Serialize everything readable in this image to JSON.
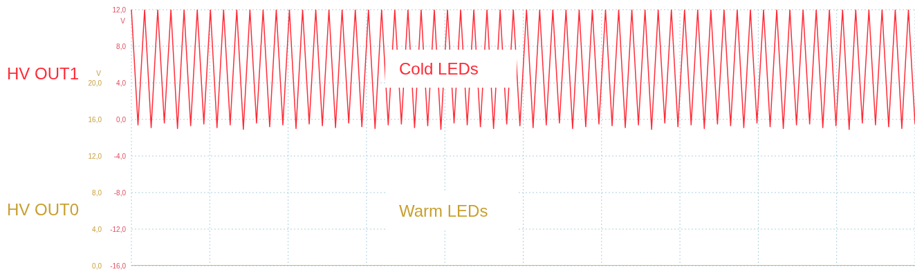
{
  "chart_data": {
    "type": "line",
    "categories": [
      null,
      null,
      null,
      null,
      null,
      null,
      null,
      null,
      null,
      null,
      null,
      null,
      null,
      null,
      null,
      null,
      null,
      null,
      null,
      null,
      null,
      null,
      null,
      null,
      null,
      null,
      null,
      null,
      null,
      null,
      null,
      null,
      null,
      null,
      null,
      null,
      null,
      null,
      null,
      null,
      null,
      null,
      null,
      null,
      null,
      null,
      null,
      null,
      null,
      null,
      null,
      null,
      null,
      null,
      null,
      null,
      null,
      null,
      null,
      null,
      null,
      null,
      null,
      null,
      null,
      null,
      null,
      null,
      null,
      null,
      null,
      null,
      null,
      null,
      null,
      null,
      null,
      null,
      null,
      null,
      null,
      null,
      null,
      null,
      null,
      null,
      null,
      null,
      null,
      null,
      null,
      null,
      null,
      null,
      null,
      null,
      null,
      null,
      null,
      null,
      null,
      null,
      null,
      null,
      null,
      null,
      null,
      null,
      null,
      null,
      null,
      null,
      null,
      null,
      null,
      null,
      null,
      null,
      null,
      null
    ],
    "series": [
      {
        "name": "HV OUT1",
        "color": "#ff2a36",
        "values": [
          12,
          -0.6,
          12,
          -0.9,
          12,
          -0.4,
          12,
          -1.0,
          12,
          -0.7,
          12,
          -0.5,
          12,
          -0.9,
          12,
          -0.6,
          12,
          -1.1,
          12,
          -0.4,
          12,
          -0.8,
          12,
          -0.6,
          12,
          -1.0,
          12,
          -0.5,
          12,
          -0.7,
          12,
          -0.9,
          12,
          -0.4,
          12,
          -0.8,
          12,
          -1.0,
          12,
          -0.6,
          12,
          -0.5,
          12,
          -0.9,
          12,
          -0.7,
          12,
          -1.1,
          12,
          -0.4,
          12,
          -0.6,
          12,
          -0.8,
          12,
          -1.0,
          12,
          -0.5,
          12,
          -0.7,
          12,
          -0.9,
          12,
          -0.6,
          12,
          -0.4,
          12,
          -1.0,
          12,
          -0.8,
          12,
          -0.5,
          12,
          -0.7,
          12,
          -0.9,
          12,
          -0.6,
          12,
          -1.1,
          12,
          -0.4,
          12,
          -0.8,
          12,
          -0.6,
          12,
          -1.0,
          12,
          -0.5,
          12,
          -0.7,
          12,
          -0.9,
          12,
          -0.4,
          12,
          -0.8,
          12,
          -1.0,
          12,
          -0.6,
          12,
          -0.5,
          12,
          -0.9,
          12,
          -0.7,
          12,
          -1.1,
          12,
          -0.4,
          12,
          -0.6,
          12,
          -0.8,
          12,
          -1.0,
          12,
          -0.5
        ]
      },
      {
        "name": "HV OUT0",
        "color": "#c8a030",
        "axis": "y2",
        "values": [
          0,
          0,
          0,
          0,
          0,
          0,
          0,
          0,
          0,
          0,
          0,
          0,
          0,
          0,
          0,
          0,
          0,
          0,
          0,
          0,
          0,
          0,
          0,
          0,
          0,
          0,
          0,
          0,
          0,
          0,
          0,
          0,
          0,
          0,
          0,
          0,
          0,
          0,
          0,
          0,
          0,
          0,
          0,
          0,
          0,
          0,
          0,
          0,
          0,
          0,
          0,
          0,
          0,
          0,
          0,
          0,
          0,
          0,
          0,
          0,
          0,
          0,
          0,
          0,
          0,
          0,
          0,
          0,
          0,
          0,
          0,
          0,
          0,
          0,
          0,
          0,
          0,
          0,
          0,
          0,
          0,
          0,
          0,
          0,
          0,
          0,
          0,
          0,
          0,
          0,
          0,
          0,
          0,
          0,
          0,
          0,
          0,
          0,
          0,
          0,
          0,
          0,
          0,
          0,
          0,
          0,
          0,
          0,
          0,
          0,
          0,
          0,
          0,
          0,
          0,
          0,
          0,
          0,
          0,
          0
        ]
      }
    ],
    "ylabel": "V",
    "y2label": "V",
    "ylim": [
      -16,
      12
    ],
    "yticks": [
      {
        "value": -16,
        "label": "-16,0"
      },
      {
        "value": -12,
        "label": "-12,0"
      },
      {
        "value": -8,
        "label": "-8,0"
      },
      {
        "value": -4,
        "label": "-4,0"
      },
      {
        "value": 0,
        "label": "0,0"
      },
      {
        "value": 4,
        "label": "4,0"
      },
      {
        "value": 8,
        "label": "8,0"
      },
      {
        "value": 12,
        "label": "12,0"
      }
    ],
    "y2lim": [
      0,
      28
    ],
    "y2ticks": [
      {
        "value": 0,
        "label": "0,0"
      },
      {
        "value": 4,
        "label": "4,0"
      },
      {
        "value": 8,
        "label": "8,0"
      },
      {
        "value": 12,
        "label": "12,0"
      },
      {
        "value": 16,
        "label": "16,0"
      },
      {
        "value": 20,
        "label": "20,0"
      }
    ],
    "annotations": [
      "Cold LEDs",
      "Warm LEDs"
    ],
    "grid": true,
    "tick_labels": "y",
    "marker": "none",
    "line_style": "solid"
  }
}
